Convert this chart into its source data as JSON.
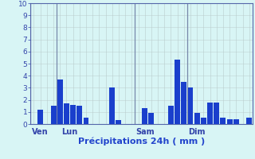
{
  "values": [
    0,
    1.2,
    0,
    1.5,
    3.7,
    1.7,
    1.6,
    1.5,
    0.5,
    0,
    0,
    0,
    3.0,
    0.3,
    0,
    0,
    0,
    1.3,
    0.9,
    0,
    0,
    1.5,
    5.3,
    3.5,
    3.0,
    0.9,
    0.5,
    1.8,
    1.8,
    0.5,
    0.4,
    0.4,
    0,
    0.5
  ],
  "day_labels": [
    "Ven",
    "Lun",
    "Sam",
    "Dim"
  ],
  "day_positions": [
    1,
    5,
    17,
    25
  ],
  "day_vline_positions": [
    3,
    16,
    24
  ],
  "xlabel": "Précipitations 24h ( mm )",
  "ylim": [
    0,
    10
  ],
  "yticks": [
    0,
    1,
    2,
    3,
    4,
    5,
    6,
    7,
    8,
    9,
    10
  ],
  "bar_color": "#1a3fcc",
  "bg_color": "#d8f5f5",
  "grid_color_h": "#c8dede",
  "grid_color_v": "#b8cccc",
  "axis_color": "#5566aa",
  "tick_color": "#3344aa",
  "label_color": "#2244cc",
  "separator_color": "#7788aa"
}
